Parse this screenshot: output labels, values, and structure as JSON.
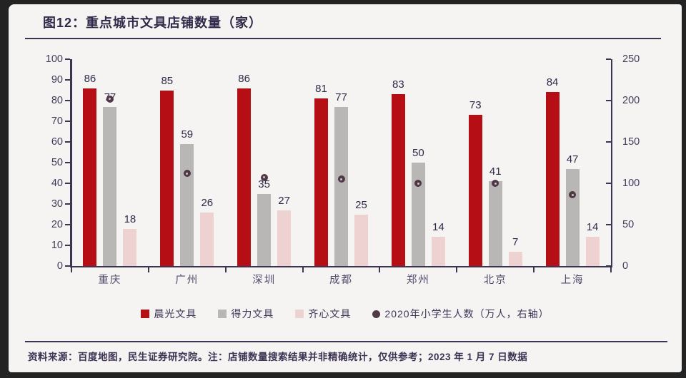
{
  "header": {
    "title": "图12：重点城市文具店铺数量（家）"
  },
  "footer": {
    "text": "资料来源：百度地图，民生证券研究院。注：店铺数量搜索结果并非精确统计，仅供参考；2023 年 1 月 7 日数据"
  },
  "colors": {
    "red": "#b50f15",
    "gray": "#b9b7b6",
    "pink": "#edd2d1",
    "dot": "#4f3946",
    "axis": "#3a3550",
    "card_bg": "#f6f4f3",
    "frame": "#232323"
  },
  "chart_data": {
    "type": "bar",
    "title": "重点城市文具店铺数量（家）",
    "categories": [
      "重庆",
      "广州",
      "深圳",
      "成都",
      "郑州",
      "北京",
      "上海"
    ],
    "series": [
      {
        "key": "chenguang",
        "name": "晨光文具",
        "color_key": "red",
        "values": [
          86,
          85,
          86,
          81,
          83,
          73,
          84
        ]
      },
      {
        "key": "deli",
        "name": "得力文具",
        "color_key": "gray",
        "values": [
          77,
          59,
          35,
          77,
          50,
          41,
          47
        ]
      },
      {
        "key": "qixin",
        "name": "齐心文具",
        "color_key": "pink",
        "values": [
          18,
          26,
          27,
          25,
          14,
          7,
          14
        ]
      }
    ],
    "dot_series": {
      "key": "students",
      "name": "2020年小学生人数（万人，右轴）",
      "axis": "right",
      "values": [
        202,
        112,
        107,
        105,
        100,
        100,
        86
      ]
    },
    "left_axis": {
      "min": 0,
      "max": 100,
      "step": 10,
      "ticks": [
        0,
        10,
        20,
        30,
        40,
        50,
        60,
        70,
        80,
        90,
        100
      ]
    },
    "right_axis": {
      "min": 0,
      "max": 250,
      "step": 50,
      "ticks": [
        0,
        50,
        100,
        150,
        200,
        250
      ]
    },
    "grid": false,
    "legend_position": "bottom",
    "bar_labels_shown": true
  }
}
